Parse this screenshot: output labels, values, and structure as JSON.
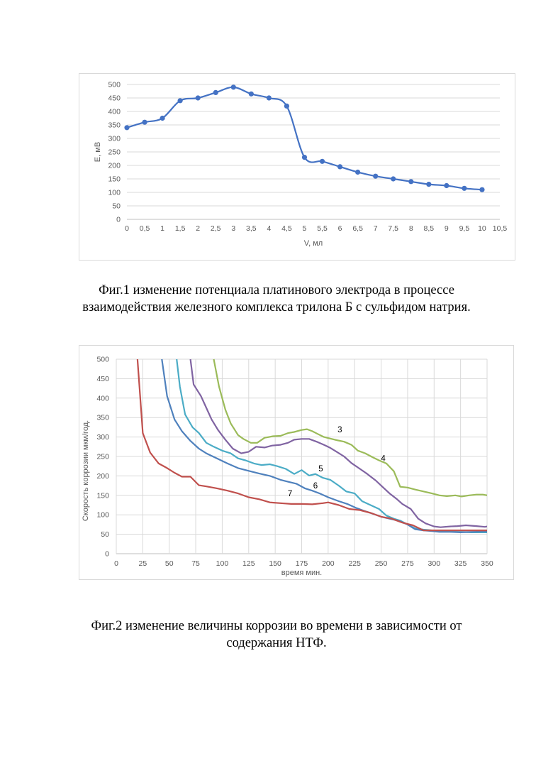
{
  "figures": [
    {
      "caption_lines": [
        "Фиг.1 изменение потенциала платинового электрода в процессе",
        "взаимодействия железного комплекса трилона Б с сульфидом натрия."
      ]
    },
    {
      "caption_lines": [
        "Фиг.2 изменение величины коррозии во времени в зависимости от",
        "содержания НТФ."
      ]
    }
  ],
  "chart_data": [
    {
      "type": "line",
      "xlabel": "V, мл",
      "ylabel": "E, мВ",
      "xlim": [
        0,
        10.5
      ],
      "ylim": [
        0,
        500
      ],
      "x_ticks": [
        "0",
        "0,5",
        "1",
        "1,5",
        "2",
        "2,5",
        "3",
        "3,5",
        "4",
        "4,5",
        "5",
        "5,5",
        "6",
        "6,5",
        "7",
        "7,5",
        "8",
        "8,5",
        "9",
        "9,5",
        "10",
        "10,5"
      ],
      "y_ticks": [
        "0",
        "50",
        "100",
        "150",
        "200",
        "250",
        "300",
        "350",
        "400",
        "450",
        "500"
      ],
      "grid": "horizontal",
      "markers": true,
      "line_color": "#4472c4",
      "series": [
        {
          "x": [
            0,
            0.5,
            1,
            1.5,
            2,
            2.5,
            3,
            3.5,
            4,
            4.5,
            5,
            5.5,
            6,
            6.5,
            7,
            7.5,
            8,
            8.5,
            9,
            9.5,
            10
          ],
          "values": [
            340,
            360,
            375,
            440,
            450,
            470,
            490,
            465,
            450,
            420,
            230,
            215,
            195,
            175,
            160,
            150,
            140,
            130,
            125,
            115,
            110
          ]
        }
      ]
    },
    {
      "type": "line",
      "xlabel": "время мин.",
      "ylabel": "Скорость коррозии мкм/год.",
      "xlim": [
        0,
        350
      ],
      "ylim": [
        0,
        500
      ],
      "x_ticks": [
        "0",
        "25",
        "50",
        "75",
        "100",
        "125",
        "150",
        "175",
        "200",
        "225",
        "250",
        "275",
        "300",
        "325",
        "350"
      ],
      "y_ticks": [
        "0",
        "50",
        "100",
        "150",
        "200",
        "250",
        "300",
        "350",
        "400",
        "450",
        "500"
      ],
      "grid": "both",
      "series": [
        {
          "label": "3",
          "color": "#9bbb59",
          "label_at": [
            211,
            312
          ],
          "x": [
            92,
            97,
            103,
            108,
            115,
            120,
            127,
            133,
            140,
            148,
            155,
            162,
            168,
            175,
            180,
            185,
            190,
            196,
            202,
            208,
            215,
            222,
            228,
            235,
            242,
            248,
            255,
            262,
            268,
            275,
            282,
            290,
            298,
            305,
            312,
            320,
            326,
            333,
            340,
            346,
            350
          ],
          "values": [
            500,
            430,
            370,
            335,
            305,
            295,
            285,
            285,
            298,
            302,
            303,
            310,
            313,
            318,
            320,
            315,
            308,
            300,
            296,
            292,
            288,
            280,
            265,
            258,
            248,
            240,
            232,
            212,
            172,
            170,
            165,
            160,
            155,
            150,
            148,
            150,
            147,
            150,
            152,
            152,
            150
          ]
        },
        {
          "label": "4",
          "color": "#8064a2",
          "label_at": [
            252,
            238
          ],
          "x": [
            70,
            73,
            80,
            85,
            90,
            96,
            103,
            110,
            118,
            125,
            132,
            140,
            147,
            155,
            162,
            168,
            175,
            182,
            190,
            196,
            202,
            208,
            215,
            222,
            230,
            237,
            245,
            252,
            258,
            265,
            270,
            278,
            285,
            292,
            300,
            306,
            315,
            322,
            330,
            340,
            348,
            350
          ],
          "values": [
            500,
            435,
            405,
            375,
            345,
            318,
            293,
            270,
            258,
            262,
            275,
            273,
            278,
            280,
            285,
            293,
            295,
            295,
            287,
            280,
            272,
            262,
            250,
            233,
            218,
            205,
            188,
            170,
            155,
            140,
            128,
            115,
            90,
            78,
            70,
            68,
            70,
            71,
            73,
            71,
            69,
            70
          ]
        },
        {
          "label": "5",
          "color": "#4bacc6",
          "label_at": [
            193,
            212
          ],
          "x": [
            57,
            60,
            65,
            72,
            78,
            85,
            92,
            100,
            108,
            115,
            122,
            130,
            137,
            145,
            152,
            160,
            168,
            175,
            182,
            188,
            195,
            202,
            210,
            217,
            225,
            232,
            240,
            248,
            255,
            262,
            268,
            275,
            282,
            290,
            298,
            305,
            315,
            325,
            335,
            345,
            350
          ],
          "values": [
            500,
            430,
            358,
            325,
            310,
            285,
            275,
            265,
            258,
            245,
            240,
            232,
            228,
            230,
            225,
            218,
            205,
            215,
            201,
            205,
            195,
            190,
            175,
            160,
            155,
            135,
            125,
            115,
            98,
            90,
            85,
            75,
            65,
            62,
            60,
            58,
            57,
            56,
            55,
            55,
            55
          ]
        },
        {
          "label": "6",
          "color": "#4f81bd",
          "label_at": [
            188,
            168
          ],
          "x": [
            43,
            48,
            55,
            62,
            70,
            78,
            85,
            95,
            105,
            115,
            125,
            135,
            145,
            155,
            162,
            170,
            178,
            185,
            192,
            200,
            210,
            218,
            226,
            234,
            242,
            250,
            258,
            266,
            275,
            282,
            290,
            298,
            305,
            315,
            325,
            335,
            345,
            350
          ],
          "values": [
            500,
            405,
            345,
            315,
            290,
            270,
            258,
            245,
            232,
            220,
            213,
            206,
            200,
            190,
            185,
            180,
            168,
            162,
            155,
            145,
            135,
            128,
            118,
            110,
            103,
            95,
            90,
            85,
            75,
            63,
            60,
            58,
            56,
            56,
            55,
            56,
            57,
            57
          ]
        },
        {
          "label": "7",
          "color": "#c0504d",
          "label_at": [
            164,
            148
          ],
          "x": [
            20,
            25,
            32,
            40,
            48,
            55,
            62,
            70,
            78,
            85,
            95,
            105,
            115,
            125,
            135,
            145,
            155,
            165,
            175,
            185,
            195,
            200,
            210,
            220,
            230,
            240,
            250,
            260,
            270,
            280,
            290,
            300,
            310,
            320,
            330,
            340,
            350
          ],
          "values": [
            500,
            310,
            260,
            232,
            220,
            208,
            198,
            198,
            176,
            173,
            168,
            162,
            155,
            145,
            140,
            132,
            130,
            128,
            128,
            127,
            130,
            132,
            125,
            115,
            112,
            105,
            95,
            90,
            80,
            73,
            60,
            60,
            60,
            60,
            60,
            60,
            60
          ]
        }
      ]
    }
  ]
}
